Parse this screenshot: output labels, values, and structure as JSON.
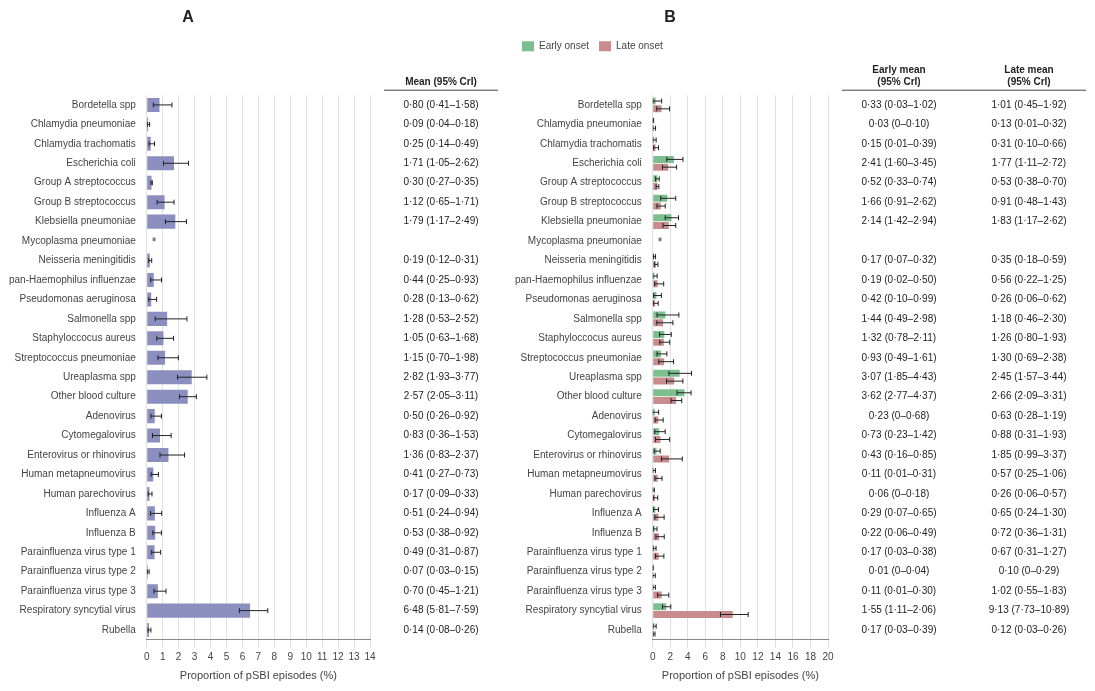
{
  "chart_data": [
    {
      "type": "bar",
      "orientation": "horizontal",
      "title": "A",
      "xlabel": "Proportion of pSBI episodes (%)",
      "categories": [
        "Bordetella spp",
        "Chlamydia pneumoniae",
        "Chlamydia trachomatis",
        "Escherichia coli",
        "Group A streptococcus",
        "Group B streptococcus",
        "Klebsiella pneumoniae",
        "Mycoplasma pneumoniae",
        "Neisseria meningitidis",
        "pan-Haemophilus influenzae",
        "Pseudomonas aeruginosa",
        "Salmonella spp",
        "Staphyloccocus aureus",
        "Streptococcus pneumoniae",
        "Ureaplasma spp",
        "Other blood culture",
        "Adenovirus",
        "Cytomegalovirus",
        "Enterovirus or rhinovirus",
        "Human metapneumovirus",
        "Human parechovirus",
        "Influenza A",
        "Influenza B",
        "Parainfluenza virus type 1",
        "Parainfluenza virus type 2",
        "Parainfluenza virus type 3",
        "Respiratory syncytial virus",
        "Rubella"
      ],
      "values": [
        0.8,
        0.09,
        0.25,
        1.71,
        0.3,
        1.12,
        1.79,
        null,
        0.19,
        0.44,
        0.28,
        1.28,
        1.05,
        1.15,
        2.82,
        2.57,
        0.5,
        0.83,
        1.36,
        0.41,
        0.17,
        0.51,
        0.53,
        0.49,
        0.07,
        0.7,
        6.48,
        0.14
      ],
      "ci_low": [
        0.41,
        0.04,
        0.14,
        1.05,
        0.27,
        0.65,
        1.17,
        null,
        0.12,
        0.25,
        0.13,
        0.53,
        0.63,
        0.7,
        1.93,
        2.05,
        0.26,
        0.36,
        0.83,
        0.27,
        0.09,
        0.24,
        0.38,
        0.31,
        0.03,
        0.45,
        5.81,
        0.08
      ],
      "ci_high": [
        1.58,
        0.18,
        0.49,
        2.62,
        0.35,
        1.71,
        2.49,
        null,
        0.31,
        0.93,
        0.62,
        2.52,
        1.68,
        1.98,
        3.77,
        3.11,
        0.92,
        1.53,
        2.37,
        0.73,
        0.33,
        0.94,
        0.92,
        0.87,
        0.15,
        1.21,
        7.59,
        0.26
      ],
      "value_labels": [
        "0·80 (0·41–1·58)",
        "0·09 (0·04–0·18)",
        "0·25 (0·14–0·49)",
        "1·71 (1·05–2·62)",
        "0·30 (0·27–0·35)",
        "1·12 (0·65–1·71)",
        "1·79 (1·17–2·49)",
        null,
        "0·19 (0·12–0·31)",
        "0·44 (0·25–0·93)",
        "0·28 (0·13–0·62)",
        "1·28 (0·53–2·52)",
        "1·05 (0·63–1·68)",
        "1·15 (0·70–1·98)",
        "2·82 (1·93–3·77)",
        "2·57 (2·05–3·11)",
        "0·50 (0·26–0·92)",
        "0·83 (0·36–1·53)",
        "1·36 (0·83–2·37)",
        "0·41 (0·27–0·73)",
        "0·17 (0·09–0·33)",
        "0·51 (0·24–0·94)",
        "0·53 (0·38–0·92)",
        "0·49 (0·31–0·87)",
        "0·07 (0·03–0·15)",
        "0·70 (0·45–1·21)",
        "6·48 (5·81–7·59)",
        "0·14 (0·08–0·26)"
      ],
      "color": "#8b8fbf",
      "xlim": [
        0,
        14
      ],
      "xticks": [
        0,
        1,
        2,
        3,
        4,
        5,
        6,
        7,
        8,
        9,
        10,
        11,
        12,
        13,
        14
      ],
      "grid": true,
      "annotations": [
        {
          "text": "Mean (95% CrI)"
        },
        {
          "text": "*",
          "category": "Mycoplasma pneumoniae"
        }
      ]
    },
    {
      "type": "bar",
      "orientation": "horizontal",
      "title": "B",
      "xlabel": "Proportion of pSBI episodes (%)",
      "categories": [
        "Bordetella spp",
        "Chlamydia pneumoniae",
        "Chlamydia trachomatis",
        "Escherichia coli",
        "Group A streptococcus",
        "Group B streptococcus",
        "Klebsiella pneumoniae",
        "Mycoplasma pneumoniae",
        "Neisseria meningitidis",
        "pan-Haemophilus influenzae",
        "Pseudomonas aeruginosa",
        "Salmonella spp",
        "Staphyloccocus aureus",
        "Streptococcus pneumoniae",
        "Ureaplasma spp",
        "Other blood culture",
        "Adenovirus",
        "Cytomegalovirus",
        "Enterovirus or rhinovirus",
        "Human metapneumovirus",
        "Human parechovirus",
        "Influenza A",
        "Influenza B",
        "Parainfluenza virus type 1",
        "Parainfluenza virus type 2",
        "Parainfluenza virus type 3",
        "Respiratory syncytial virus",
        "Rubella"
      ],
      "series": [
        {
          "name": "Early onset",
          "color": "#7bbf8e",
          "values": [
            0.33,
            0.03,
            0.15,
            2.41,
            0.52,
            1.66,
            2.14,
            null,
            0.17,
            0.19,
            0.42,
            1.44,
            1.32,
            0.93,
            3.07,
            3.62,
            0.23,
            0.73,
            0.43,
            0.11,
            0.06,
            0.29,
            0.22,
            0.17,
            0.01,
            0.11,
            1.55,
            0.17
          ],
          "ci_low": [
            0.03,
            0.0,
            0.01,
            1.6,
            0.33,
            0.91,
            1.42,
            null,
            0.07,
            0.02,
            0.1,
            0.49,
            0.78,
            0.49,
            1.85,
            2.77,
            0.0,
            0.23,
            0.16,
            0.01,
            0.0,
            0.07,
            0.06,
            0.03,
            0.0,
            0.01,
            1.11,
            0.03
          ],
          "ci_high": [
            1.02,
            0.1,
            0.39,
            3.45,
            0.74,
            2.62,
            2.94,
            null,
            0.32,
            0.5,
            0.99,
            2.98,
            2.11,
            1.61,
            4.43,
            4.37,
            0.68,
            1.42,
            0.85,
            0.31,
            0.18,
            0.65,
            0.49,
            0.38,
            0.04,
            0.3,
            2.06,
            0.39
          ],
          "value_labels": [
            "0·33 (0·03–1·02)",
            "0·03 (0–0·10)",
            "0·15 (0·01–0·39)",
            "2·41 (1·60–3·45)",
            "0·52 (0·33–0·74)",
            "1·66 (0·91–2·62)",
            "2·14 (1·42–2·94)",
            null,
            "0·17 (0·07–0·32)",
            "0·19 (0·02–0·50)",
            "0·42 (0·10–0·99)",
            "1·44 (0·49–2·98)",
            "1·32 (0·78–2·11)",
            "0·93 (0·49–1·61)",
            "3·07 (1·85–4·43)",
            "3·62 (2·77–4·37)",
            "0·23 (0–0·68)",
            "0·73 (0·23–1·42)",
            "0·43 (0·16–0·85)",
            "0·11 (0·01–0·31)",
            "0·06 (0–0·18)",
            "0·29 (0·07–0·65)",
            "0·22 (0·06–0·49)",
            "0·17 (0·03–0·38)",
            "0·01 (0–0·04)",
            "0·11 (0·01–0·30)",
            "1·55 (1·11–2·06)",
            "0·17 (0·03–0·39)"
          ]
        },
        {
          "name": "Late onset",
          "color": "#c98b8b",
          "values": [
            1.01,
            0.13,
            0.31,
            1.77,
            0.53,
            0.91,
            1.83,
            null,
            0.35,
            0.56,
            0.26,
            1.18,
            1.26,
            1.3,
            2.45,
            2.66,
            0.63,
            0.88,
            1.85,
            0.57,
            0.26,
            0.65,
            0.72,
            0.67,
            0.1,
            1.02,
            9.13,
            0.12
          ],
          "ci_low": [
            0.45,
            0.01,
            0.1,
            1.11,
            0.38,
            0.48,
            1.17,
            null,
            0.18,
            0.22,
            0.06,
            0.46,
            0.8,
            0.69,
            1.57,
            2.09,
            0.28,
            0.31,
            0.99,
            0.25,
            0.06,
            0.24,
            0.36,
            0.31,
            0.0,
            0.55,
            7.73,
            0.03
          ],
          "ci_high": [
            1.92,
            0.32,
            0.66,
            2.72,
            0.7,
            1.43,
            2.62,
            null,
            0.59,
            1.25,
            0.62,
            2.3,
            1.93,
            2.38,
            3.44,
            3.31,
            1.19,
            1.93,
            3.37,
            1.06,
            0.57,
            1.3,
            1.31,
            1.27,
            0.29,
            1.83,
            10.89,
            0.26
          ],
          "value_labels": [
            "1·01 (0·45–1·92)",
            "0·13 (0·01–0·32)",
            "0·31 (0·10–0·66)",
            "1·77 (1·11–2·72)",
            "0·53 (0·38–0·70)",
            "0·91 (0·48–1·43)",
            "1·83 (1·17–2·62)",
            null,
            "0·35 (0·18–0·59)",
            "0·56 (0·22–1·25)",
            "0·26 (0·06–0·62)",
            "1·18 (0·46–2·30)",
            "1·26 (0·80–1·93)",
            "1·30 (0·69–2·38)",
            "2·45 (1·57–3·44)",
            "2·66 (2·09–3·31)",
            "0·63 (0·28–1·19)",
            "0·88 (0·31–1·93)",
            "1·85 (0·99–3·37)",
            "0·57 (0·25–1·06)",
            "0·26 (0·06–0·57)",
            "0·65 (0·24–1·30)",
            "0·72 (0·36–1·31)",
            "0·67 (0·31–1·27)",
            "0·10 (0–0·29)",
            "1·02 (0·55–1·83)",
            "9·13 (7·73–10·89)",
            "0·12 (0·03–0·26)"
          ]
        }
      ],
      "xlim": [
        0,
        20
      ],
      "xticks": [
        0,
        2,
        4,
        6,
        8,
        10,
        12,
        14,
        16,
        18,
        20
      ],
      "grid": true,
      "legend": "upper left",
      "annotations": [
        {
          "text": "Early mean\n(95% CrI)"
        },
        {
          "text": "Late mean\n(95% CrI)"
        },
        {
          "text": "*",
          "category": "Mycoplasma pneumoniae"
        }
      ]
    }
  ]
}
